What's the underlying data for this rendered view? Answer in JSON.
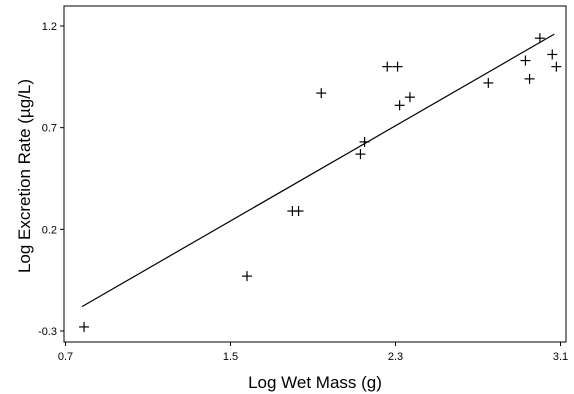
{
  "chart_data": {
    "type": "scatter",
    "xlabel": "Log Wet Mass (g)",
    "ylabel": "Log Excretion Rate (µg/L)",
    "xlim": [
      0.7,
      3.1
    ],
    "ylim": [
      -0.3,
      1.2
    ],
    "x_ticks": [
      "0.7",
      "1.5",
      "2.3",
      "3.1"
    ],
    "y_ticks": [
      "-0.3",
      "0.2",
      "0.7",
      "1.2"
    ],
    "grid": false,
    "legend": "none",
    "marker": "plus",
    "points": [
      {
        "x": 0.79,
        "y": -0.28
      },
      {
        "x": 1.58,
        "y": -0.03
      },
      {
        "x": 1.8,
        "y": 0.29
      },
      {
        "x": 1.83,
        "y": 0.29
      },
      {
        "x": 1.94,
        "y": 0.87
      },
      {
        "x": 2.13,
        "y": 0.57
      },
      {
        "x": 2.15,
        "y": 0.63
      },
      {
        "x": 2.26,
        "y": 1.0
      },
      {
        "x": 2.31,
        "y": 1.0
      },
      {
        "x": 2.32,
        "y": 0.81
      },
      {
        "x": 2.37,
        "y": 0.85
      },
      {
        "x": 2.75,
        "y": 0.92
      },
      {
        "x": 2.93,
        "y": 1.03
      },
      {
        "x": 2.95,
        "y": 0.94
      },
      {
        "x": 3.0,
        "y": 1.14
      },
      {
        "x": 3.06,
        "y": 1.06
      },
      {
        "x": 3.08,
        "y": 1.0
      }
    ],
    "fit_line": {
      "x": [
        0.78,
        3.07
      ],
      "y": [
        -0.18,
        1.16
      ]
    },
    "colors": {
      "marker": "#000000",
      "line": "#000000",
      "axes": "#000000"
    }
  }
}
